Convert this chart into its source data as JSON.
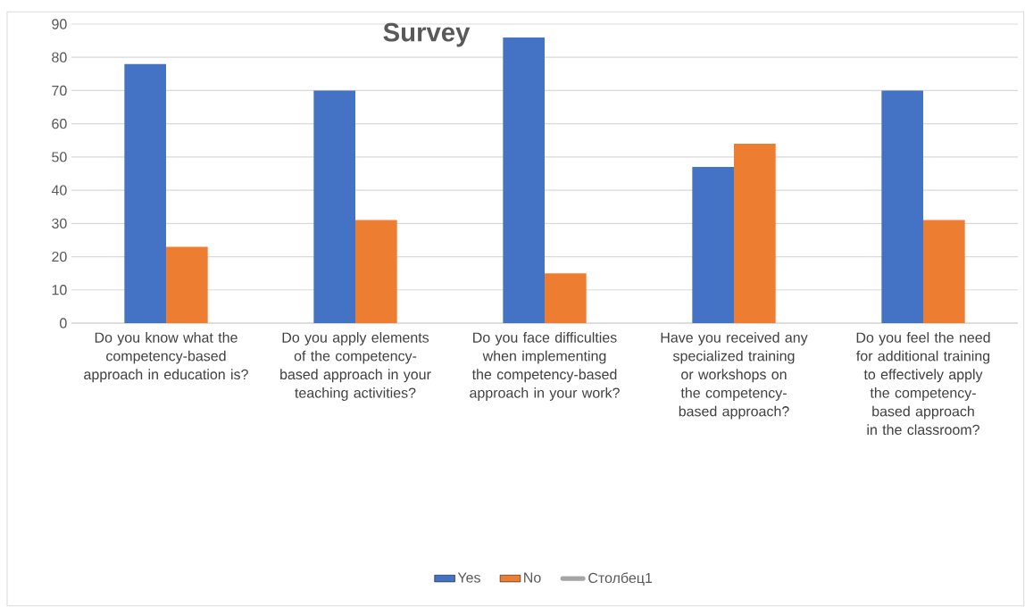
{
  "chart_data": {
    "type": "bar",
    "title": "Survey",
    "categories": [
      "Do you know what the competency-based approach in education is?",
      "Do you apply elements of the competency-based approach in your teaching activities?",
      "Do you face difficulties when implementing the competency-based approach in your work?",
      "Have you received any specialized training or workshops on the competency-based approach?",
      "Do you feel the need for additional training to effectively apply the competency-based approach in the classroom?"
    ],
    "series": [
      {
        "name": "Yes",
        "color": "#4472c4",
        "values": [
          78,
          70,
          86,
          47,
          70
        ]
      },
      {
        "name": "No",
        "color": "#ed7d31",
        "values": [
          23,
          31,
          15,
          54,
          31
        ]
      },
      {
        "name": "Столбец1",
        "type": "line",
        "color": "#a5a5a5",
        "values": [
          null,
          null,
          null,
          null,
          null
        ]
      }
    ],
    "ylim": [
      0,
      90
    ],
    "yticks": [
      0,
      10,
      20,
      30,
      40,
      50,
      60,
      70,
      80,
      90
    ],
    "grid": "y",
    "legend": "bottom"
  }
}
